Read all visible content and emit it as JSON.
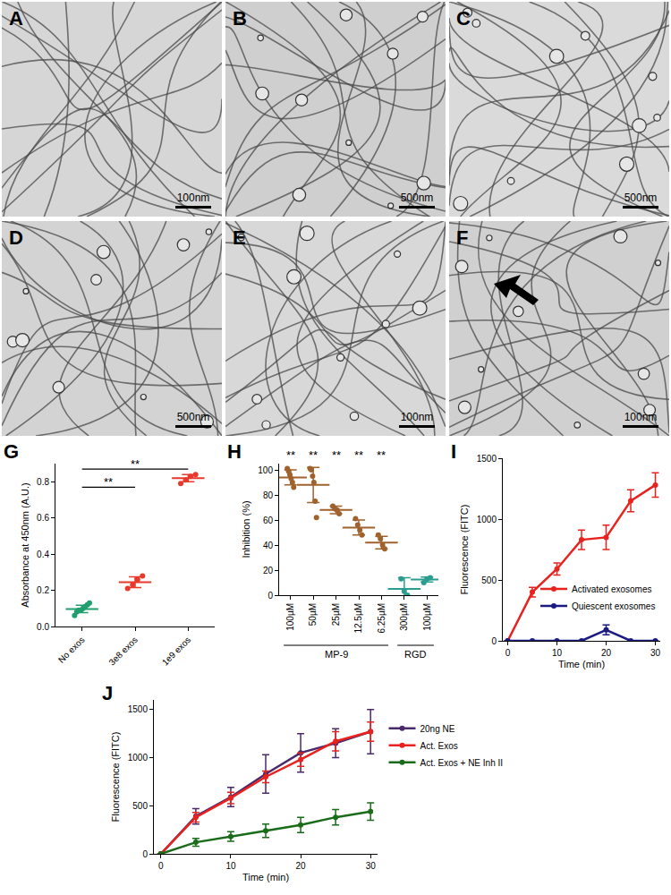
{
  "images": [
    {
      "label": "A",
      "scale_bar": "100nm"
    },
    {
      "label": "B",
      "scale_bar": "500nm"
    },
    {
      "label": "C",
      "scale_bar": "500nm"
    },
    {
      "label": "D",
      "scale_bar": "500nm"
    },
    {
      "label": "E",
      "scale_bar": "100nm"
    },
    {
      "label": "F",
      "scale_bar": "100nm"
    }
  ],
  "chart_data": [
    {
      "label": "G",
      "type": "scatter",
      "ylabel": "Absorbance at 450nm (A.U.)",
      "categories": [
        "No exos",
        "3e8 exos",
        "1e9 exos"
      ],
      "points": [
        [
          0.06,
          0.08,
          0.09,
          0.09,
          0.1,
          0.11,
          0.12,
          0.13
        ],
        [
          0.21,
          0.23,
          0.26,
          0.28
        ],
        [
          0.79,
          0.81,
          0.83,
          0.84
        ]
      ],
      "means": [
        0.097,
        0.245,
        0.82
      ],
      "errors": [
        0.02,
        0.03,
        0.02
      ],
      "colors": [
        "#1f9e6e",
        "#e8392c",
        "#e8392c"
      ],
      "ylim": [
        0,
        0.9
      ],
      "yticks": [
        {
          "value": 0,
          "label": "0.0"
        },
        0.2,
        0.4,
        0.6,
        0.8
      ],
      "grid": false,
      "annotations": [
        {
          "text": "**",
          "from": 0,
          "to": 1,
          "y": 0.77
        },
        {
          "text": "**",
          "from": 0,
          "to": 2,
          "y": 0.87
        }
      ]
    },
    {
      "label": "H",
      "type": "scatter",
      "ylabel": "Inhibition (%)",
      "categories": [
        "100µM",
        "50µM",
        "25µM",
        "12.5µM",
        "6.25µM",
        "300µM",
        "100µM"
      ],
      "points": [
        [
          101,
          99,
          96,
          93,
          90,
          86
        ],
        [
          101,
          100,
          95,
          90,
          75,
          62
        ],
        [
          71,
          69,
          68,
          65
        ],
        [
          61,
          56,
          52,
          48
        ],
        [
          48,
          45,
          40,
          37
        ],
        [
          13,
          3,
          0
        ],
        [
          10,
          13,
          14
        ]
      ],
      "means": [
        94,
        88,
        68,
        54,
        42,
        5,
        12.5
      ],
      "errors": [
        6,
        14,
        3,
        6,
        5,
        9,
        2
      ],
      "colors": [
        "#a0622d",
        "#a0622d",
        "#a0622d",
        "#a0622d",
        "#a0622d",
        "#2a9d8f",
        "#2a9d8f"
      ],
      "groups": [
        {
          "label": "MP-9",
          "from": 0,
          "to": 4
        },
        {
          "label": "RGD",
          "from": 5,
          "to": 6
        }
      ],
      "ylim": [
        0,
        105
      ],
      "yticks": [
        0,
        20,
        40,
        60,
        80,
        100
      ],
      "grid": false,
      "annotations": [
        {
          "text": "**",
          "index": 0
        },
        {
          "text": "**",
          "index": 1
        },
        {
          "text": "**",
          "index": 2
        },
        {
          "text": "**",
          "index": 3
        },
        {
          "text": "**",
          "index": 4
        }
      ]
    },
    {
      "label": "I",
      "type": "line",
      "xlabel": "Time (min)",
      "ylabel": "Fluorescence (FITC)",
      "x": [
        0,
        5,
        10,
        15,
        20,
        25,
        30
      ],
      "series": [
        {
          "name": "Activated exosomes",
          "color": "#e8231f",
          "values": [
            0,
            400,
            590,
            830,
            850,
            1150,
            1280
          ],
          "errors": [
            0,
            40,
            50,
            80,
            100,
            90,
            100
          ]
        },
        {
          "name": "Quiescent exosomes",
          "color": "#1a1a80",
          "values": [
            0,
            0,
            0,
            0,
            90,
            0,
            0
          ],
          "errors": [
            0,
            0,
            0,
            0,
            40,
            0,
            0
          ]
        }
      ],
      "xlim": [
        -1,
        31
      ],
      "xticks": [
        0,
        10,
        20,
        30
      ],
      "ylim": [
        0,
        1500
      ],
      "yticks": [
        0,
        500,
        1000,
        1500
      ],
      "grid": false,
      "legend": "lower right",
      "marker": "circle"
    },
    {
      "label": "J",
      "type": "line",
      "xlabel": "Time (min)",
      "ylabel": "Fluorescence (FITC)",
      "x": [
        0,
        5,
        10,
        15,
        20,
        25,
        30
      ],
      "series": [
        {
          "name": "20ng NE",
          "color": "#4b2a6b",
          "values": [
            0,
            390,
            590,
            830,
            1050,
            1150,
            1270
          ],
          "errors": [
            0,
            80,
            100,
            200,
            200,
            150,
            230
          ]
        },
        {
          "name": "Act. Exos",
          "color": "#e8231f",
          "values": [
            0,
            380,
            580,
            800,
            980,
            1170,
            1270
          ],
          "errors": [
            0,
            50,
            60,
            60,
            70,
            100,
            100
          ]
        },
        {
          "name": "Act. Exos + NE Inh II",
          "color": "#1a6b1a",
          "values": [
            0,
            120,
            180,
            240,
            300,
            380,
            440
          ],
          "errors": [
            0,
            40,
            50,
            70,
            80,
            80,
            90
          ]
        }
      ],
      "xlim": [
        -1,
        31
      ],
      "xticks": [
        0,
        10,
        20,
        30
      ],
      "ylim": [
        0,
        1600
      ],
      "yticks": [
        0,
        500,
        1000,
        1500
      ],
      "grid": false,
      "legend": "right",
      "marker": "circle"
    }
  ]
}
